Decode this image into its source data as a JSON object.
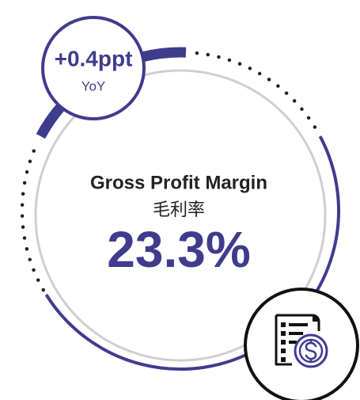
{
  "badge": {
    "value": "+0.4ppt",
    "label": "YoY"
  },
  "metric": {
    "title": "Gross Profit Margin",
    "subtitle": "毛利率",
    "value": "23.3%"
  }
}
